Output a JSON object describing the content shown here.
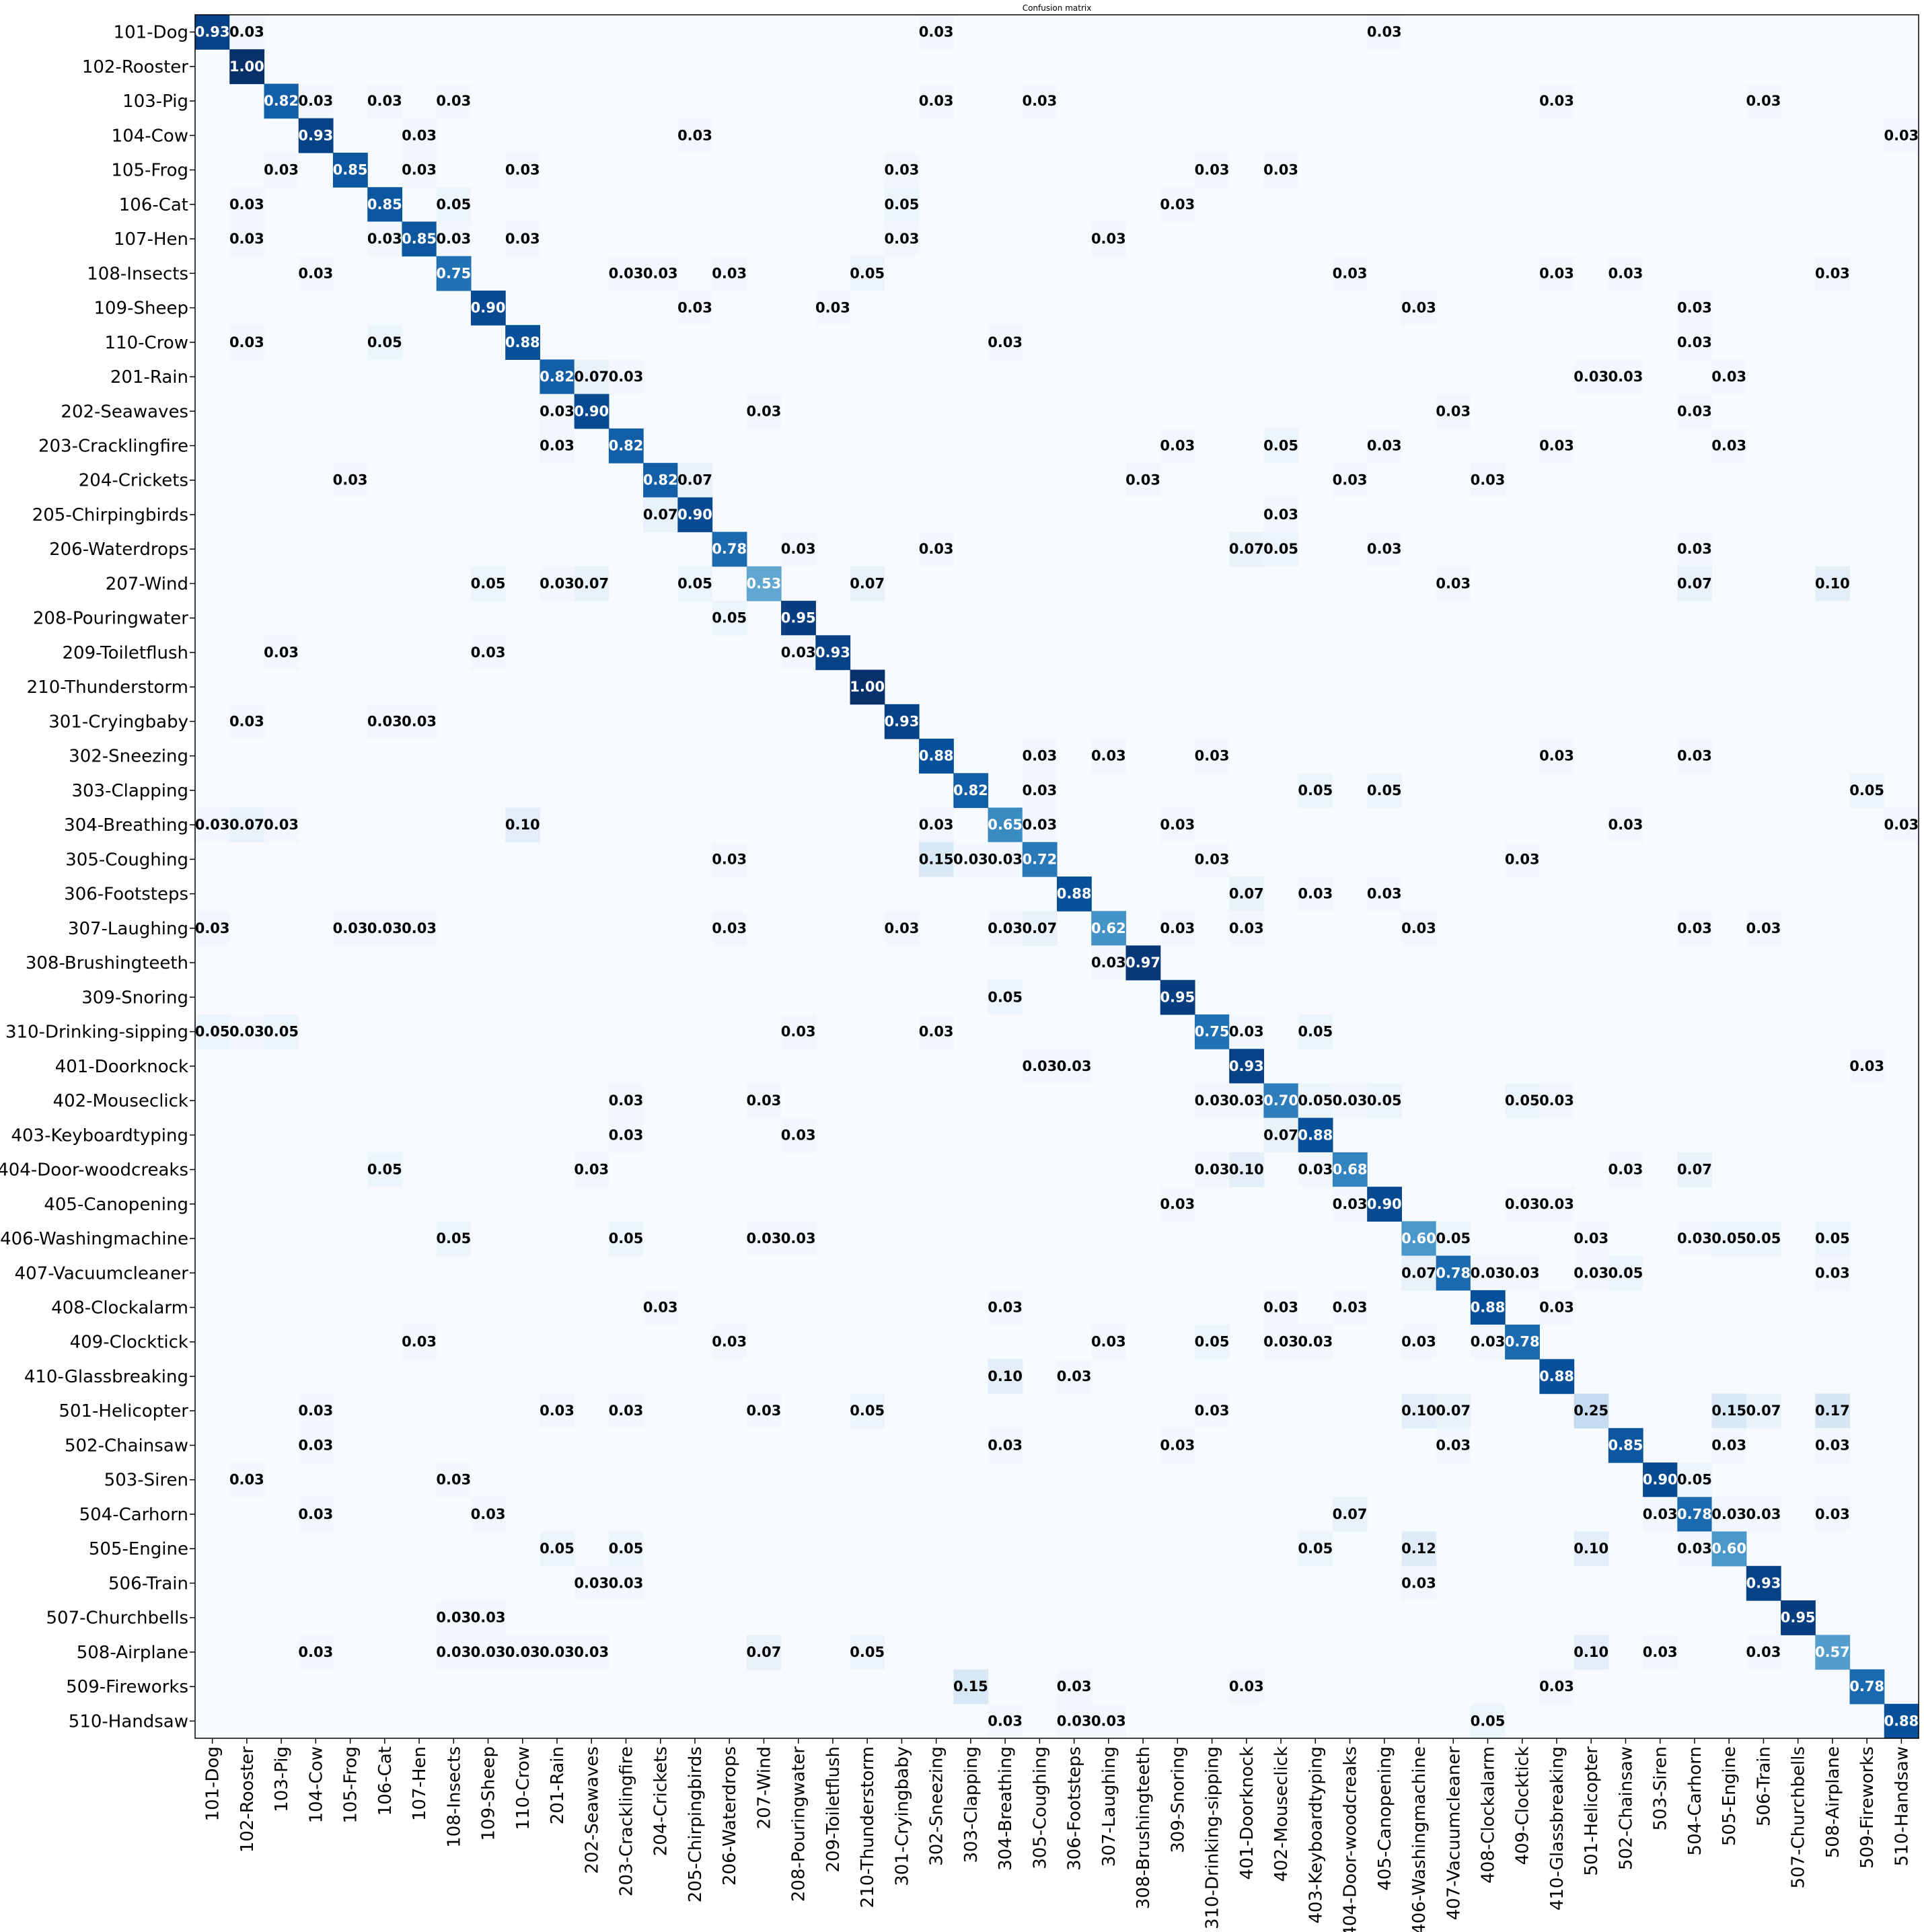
{
  "chart_data": {
    "type": "heatmap",
    "title": "Confusion matrix",
    "colormap": "Blues",
    "text_color_light": "#ffffff",
    "text_color_dark": "#000000",
    "labels": [
      "101-Dog",
      "102-Rooster",
      "103-Pig",
      "104-Cow",
      "105-Frog",
      "106-Cat",
      "107-Hen",
      "108-Insects",
      "109-Sheep",
      "110-Crow",
      "201-Rain",
      "202-Seawaves",
      "203-Cracklingfire",
      "204-Crickets",
      "205-Chirpingbirds",
      "206-Waterdrops",
      "207-Wind",
      "208-Pouringwater",
      "209-Toiletflush",
      "210-Thunderstorm",
      "301-Cryingbaby",
      "302-Sneezing",
      "303-Clapping",
      "304-Breathing",
      "305-Coughing",
      "306-Footsteps",
      "307-Laughing",
      "308-Brushingteeth",
      "309-Snoring",
      "310-Drinking-sipping",
      "401-Doorknock",
      "402-Mouseclick",
      "403-Keyboardtyping",
      "404-Door-woodcreaks",
      "405-Canopening",
      "406-Washingmachine",
      "407-Vacuumcleaner",
      "408-Clockalarm",
      "409-Clocktick",
      "410-Glassbreaking",
      "501-Helicopter",
      "502-Chainsaw",
      "503-Siren",
      "504-Carhorn",
      "505-Engine",
      "506-Train",
      "507-Churchbells",
      "508-Airplane",
      "509-Fireworks",
      "510-Handsaw"
    ],
    "cells": [
      [
        0,
        0,
        0.93
      ],
      [
        0,
        1,
        0.03
      ],
      [
        0,
        21,
        0.03
      ],
      [
        0,
        34,
        0.03
      ],
      [
        1,
        1,
        1.0
      ],
      [
        2,
        2,
        0.82
      ],
      [
        2,
        3,
        0.03
      ],
      [
        2,
        5,
        0.03
      ],
      [
        2,
        7,
        0.03
      ],
      [
        2,
        21,
        0.03
      ],
      [
        2,
        24,
        0.03
      ],
      [
        2,
        39,
        0.03
      ],
      [
        2,
        45,
        0.03
      ],
      [
        3,
        3,
        0.93
      ],
      [
        3,
        6,
        0.03
      ],
      [
        3,
        14,
        0.03
      ],
      [
        3,
        49,
        0.03
      ],
      [
        4,
        2,
        0.03
      ],
      [
        4,
        4,
        0.85
      ],
      [
        4,
        6,
        0.03
      ],
      [
        4,
        9,
        0.03
      ],
      [
        4,
        20,
        0.03
      ],
      [
        4,
        29,
        0.03
      ],
      [
        4,
        31,
        0.03
      ],
      [
        5,
        1,
        0.03
      ],
      [
        5,
        5,
        0.85
      ],
      [
        5,
        7,
        0.05
      ],
      [
        5,
        20,
        0.05
      ],
      [
        5,
        28,
        0.03
      ],
      [
        6,
        1,
        0.03
      ],
      [
        6,
        5,
        0.03
      ],
      [
        6,
        6,
        0.85
      ],
      [
        6,
        7,
        0.03
      ],
      [
        6,
        9,
        0.03
      ],
      [
        6,
        20,
        0.03
      ],
      [
        6,
        26,
        0.03
      ],
      [
        7,
        3,
        0.03
      ],
      [
        7,
        7,
        0.75
      ],
      [
        7,
        12,
        0.03
      ],
      [
        7,
        13,
        0.03
      ],
      [
        7,
        15,
        0.03
      ],
      [
        7,
        19,
        0.05
      ],
      [
        7,
        33,
        0.03
      ],
      [
        7,
        39,
        0.03
      ],
      [
        7,
        41,
        0.03
      ],
      [
        7,
        47,
        0.03
      ],
      [
        8,
        8,
        0.9
      ],
      [
        8,
        14,
        0.03
      ],
      [
        8,
        18,
        0.03
      ],
      [
        8,
        35,
        0.03
      ],
      [
        8,
        43,
        0.03
      ],
      [
        9,
        1,
        0.03
      ],
      [
        9,
        5,
        0.05
      ],
      [
        9,
        9,
        0.88
      ],
      [
        9,
        23,
        0.03
      ],
      [
        9,
        43,
        0.03
      ],
      [
        10,
        10,
        0.82
      ],
      [
        10,
        11,
        0.07
      ],
      [
        10,
        12,
        0.03
      ],
      [
        10,
        40,
        0.03
      ],
      [
        10,
        41,
        0.03
      ],
      [
        10,
        44,
        0.03
      ],
      [
        11,
        10,
        0.03
      ],
      [
        11,
        11,
        0.9
      ],
      [
        11,
        16,
        0.03
      ],
      [
        11,
        36,
        0.03
      ],
      [
        11,
        43,
        0.03
      ],
      [
        12,
        10,
        0.03
      ],
      [
        12,
        12,
        0.82
      ],
      [
        12,
        28,
        0.03
      ],
      [
        12,
        31,
        0.05
      ],
      [
        12,
        34,
        0.03
      ],
      [
        12,
        39,
        0.03
      ],
      [
        12,
        44,
        0.03
      ],
      [
        13,
        4,
        0.03
      ],
      [
        13,
        13,
        0.82
      ],
      [
        13,
        14,
        0.07
      ],
      [
        13,
        27,
        0.03
      ],
      [
        13,
        33,
        0.03
      ],
      [
        13,
        37,
        0.03
      ],
      [
        14,
        13,
        0.07
      ],
      [
        14,
        14,
        0.9
      ],
      [
        14,
        31,
        0.03
      ],
      [
        15,
        15,
        0.78
      ],
      [
        15,
        17,
        0.03
      ],
      [
        15,
        21,
        0.03
      ],
      [
        15,
        30,
        0.07
      ],
      [
        15,
        31,
        0.05
      ],
      [
        15,
        34,
        0.03
      ],
      [
        15,
        43,
        0.03
      ],
      [
        16,
        8,
        0.05
      ],
      [
        16,
        10,
        0.03
      ],
      [
        16,
        11,
        0.07
      ],
      [
        16,
        14,
        0.05
      ],
      [
        16,
        16,
        0.53
      ],
      [
        16,
        19,
        0.07
      ],
      [
        16,
        36,
        0.03
      ],
      [
        16,
        43,
        0.07
      ],
      [
        16,
        47,
        0.1
      ],
      [
        17,
        15,
        0.05
      ],
      [
        17,
        17,
        0.95
      ],
      [
        18,
        2,
        0.03
      ],
      [
        18,
        8,
        0.03
      ],
      [
        18,
        17,
        0.03
      ],
      [
        18,
        18,
        0.93
      ],
      [
        19,
        19,
        1.0
      ],
      [
        20,
        1,
        0.03
      ],
      [
        20,
        5,
        0.03
      ],
      [
        20,
        6,
        0.03
      ],
      [
        20,
        20,
        0.93
      ],
      [
        21,
        21,
        0.88
      ],
      [
        21,
        24,
        0.03
      ],
      [
        21,
        26,
        0.03
      ],
      [
        21,
        29,
        0.03
      ],
      [
        21,
        39,
        0.03
      ],
      [
        21,
        43,
        0.03
      ],
      [
        22,
        22,
        0.82
      ],
      [
        22,
        24,
        0.03
      ],
      [
        22,
        32,
        0.05
      ],
      [
        22,
        34,
        0.05
      ],
      [
        22,
        48,
        0.05
      ],
      [
        23,
        0,
        0.03
      ],
      [
        23,
        1,
        0.07
      ],
      [
        23,
        2,
        0.03
      ],
      [
        23,
        9,
        0.1
      ],
      [
        23,
        21,
        0.03
      ],
      [
        23,
        23,
        0.65
      ],
      [
        23,
        24,
        0.03
      ],
      [
        23,
        28,
        0.03
      ],
      [
        23,
        41,
        0.03
      ],
      [
        23,
        49,
        0.03
      ],
      [
        24,
        15,
        0.03
      ],
      [
        24,
        21,
        0.15
      ],
      [
        24,
        22,
        0.03
      ],
      [
        24,
        23,
        0.03
      ],
      [
        24,
        24,
        0.72
      ],
      [
        24,
        29,
        0.03
      ],
      [
        24,
        38,
        0.03
      ],
      [
        25,
        25,
        0.88
      ],
      [
        25,
        30,
        0.07
      ],
      [
        25,
        32,
        0.03
      ],
      [
        25,
        34,
        0.03
      ],
      [
        26,
        0,
        0.03
      ],
      [
        26,
        4,
        0.03
      ],
      [
        26,
        5,
        0.03
      ],
      [
        26,
        6,
        0.03
      ],
      [
        26,
        15,
        0.03
      ],
      [
        26,
        20,
        0.03
      ],
      [
        26,
        23,
        0.03
      ],
      [
        26,
        24,
        0.07
      ],
      [
        26,
        26,
        0.62
      ],
      [
        26,
        28,
        0.03
      ],
      [
        26,
        30,
        0.03
      ],
      [
        26,
        35,
        0.03
      ],
      [
        26,
        43,
        0.03
      ],
      [
        26,
        45,
        0.03
      ],
      [
        27,
        26,
        0.03
      ],
      [
        27,
        27,
        0.97
      ],
      [
        28,
        23,
        0.05
      ],
      [
        28,
        28,
        0.95
      ],
      [
        29,
        0,
        0.05
      ],
      [
        29,
        1,
        0.03
      ],
      [
        29,
        2,
        0.05
      ],
      [
        29,
        17,
        0.03
      ],
      [
        29,
        21,
        0.03
      ],
      [
        29,
        29,
        0.75
      ],
      [
        29,
        30,
        0.03
      ],
      [
        29,
        32,
        0.05
      ],
      [
        30,
        24,
        0.03
      ],
      [
        30,
        25,
        0.03
      ],
      [
        30,
        30,
        0.93
      ],
      [
        30,
        48,
        0.03
      ],
      [
        31,
        12,
        0.03
      ],
      [
        31,
        16,
        0.03
      ],
      [
        31,
        29,
        0.03
      ],
      [
        31,
        30,
        0.03
      ],
      [
        31,
        31,
        0.7
      ],
      [
        31,
        32,
        0.05
      ],
      [
        31,
        33,
        0.03
      ],
      [
        31,
        34,
        0.05
      ],
      [
        31,
        38,
        0.05
      ],
      [
        31,
        39,
        0.03
      ],
      [
        32,
        12,
        0.03
      ],
      [
        32,
        17,
        0.03
      ],
      [
        32,
        31,
        0.07
      ],
      [
        32,
        32,
        0.88
      ],
      [
        33,
        5,
        0.05
      ],
      [
        33,
        11,
        0.03
      ],
      [
        33,
        29,
        0.03
      ],
      [
        33,
        30,
        0.1
      ],
      [
        33,
        32,
        0.03
      ],
      [
        33,
        33,
        0.68
      ],
      [
        33,
        41,
        0.03
      ],
      [
        33,
        43,
        0.07
      ],
      [
        34,
        28,
        0.03
      ],
      [
        34,
        33,
        0.03
      ],
      [
        34,
        34,
        0.9
      ],
      [
        34,
        38,
        0.03
      ],
      [
        34,
        39,
        0.03
      ],
      [
        35,
        7,
        0.05
      ],
      [
        35,
        12,
        0.05
      ],
      [
        35,
        16,
        0.03
      ],
      [
        35,
        17,
        0.03
      ],
      [
        35,
        35,
        0.6
      ],
      [
        35,
        36,
        0.05
      ],
      [
        35,
        40,
        0.03
      ],
      [
        35,
        43,
        0.03
      ],
      [
        35,
        44,
        0.05
      ],
      [
        35,
        45,
        0.05
      ],
      [
        35,
        47,
        0.05
      ],
      [
        36,
        35,
        0.07
      ],
      [
        36,
        36,
        0.78
      ],
      [
        36,
        37,
        0.03
      ],
      [
        36,
        38,
        0.03
      ],
      [
        36,
        40,
        0.03
      ],
      [
        36,
        41,
        0.05
      ],
      [
        36,
        47,
        0.03
      ],
      [
        37,
        13,
        0.03
      ],
      [
        37,
        23,
        0.03
      ],
      [
        37,
        31,
        0.03
      ],
      [
        37,
        33,
        0.03
      ],
      [
        37,
        37,
        0.88
      ],
      [
        37,
        39,
        0.03
      ],
      [
        38,
        6,
        0.03
      ],
      [
        38,
        15,
        0.03
      ],
      [
        38,
        26,
        0.03
      ],
      [
        38,
        29,
        0.05
      ],
      [
        38,
        31,
        0.03
      ],
      [
        38,
        32,
        0.03
      ],
      [
        38,
        35,
        0.03
      ],
      [
        38,
        37,
        0.03
      ],
      [
        38,
        38,
        0.78
      ],
      [
        39,
        23,
        0.1
      ],
      [
        39,
        25,
        0.03
      ],
      [
        39,
        39,
        0.88
      ],
      [
        40,
        3,
        0.03
      ],
      [
        40,
        10,
        0.03
      ],
      [
        40,
        12,
        0.03
      ],
      [
        40,
        16,
        0.03
      ],
      [
        40,
        19,
        0.05
      ],
      [
        40,
        29,
        0.03
      ],
      [
        40,
        35,
        0.1
      ],
      [
        40,
        36,
        0.07
      ],
      [
        40,
        40,
        0.25
      ],
      [
        40,
        44,
        0.15
      ],
      [
        40,
        45,
        0.07
      ],
      [
        40,
        47,
        0.17
      ],
      [
        41,
        3,
        0.03
      ],
      [
        41,
        23,
        0.03
      ],
      [
        41,
        28,
        0.03
      ],
      [
        41,
        36,
        0.03
      ],
      [
        41,
        41,
        0.85
      ],
      [
        41,
        44,
        0.03
      ],
      [
        41,
        47,
        0.03
      ],
      [
        42,
        1,
        0.03
      ],
      [
        42,
        7,
        0.03
      ],
      [
        42,
        42,
        0.9
      ],
      [
        42,
        43,
        0.05
      ],
      [
        43,
        3,
        0.03
      ],
      [
        43,
        8,
        0.03
      ],
      [
        43,
        33,
        0.07
      ],
      [
        43,
        42,
        0.03
      ],
      [
        43,
        43,
        0.78
      ],
      [
        43,
        44,
        0.03
      ],
      [
        43,
        45,
        0.03
      ],
      [
        43,
        47,
        0.03
      ],
      [
        44,
        10,
        0.05
      ],
      [
        44,
        12,
        0.05
      ],
      [
        44,
        32,
        0.05
      ],
      [
        44,
        35,
        0.12
      ],
      [
        44,
        40,
        0.1
      ],
      [
        44,
        43,
        0.03
      ],
      [
        44,
        44,
        0.6
      ],
      [
        45,
        11,
        0.03
      ],
      [
        45,
        12,
        0.03
      ],
      [
        45,
        35,
        0.03
      ],
      [
        45,
        45,
        0.93
      ],
      [
        46,
        7,
        0.03
      ],
      [
        46,
        8,
        0.03
      ],
      [
        46,
        46,
        0.95
      ],
      [
        47,
        3,
        0.03
      ],
      [
        47,
        7,
        0.03
      ],
      [
        47,
        8,
        0.03
      ],
      [
        47,
        9,
        0.03
      ],
      [
        47,
        10,
        0.03
      ],
      [
        47,
        11,
        0.03
      ],
      [
        47,
        16,
        0.07
      ],
      [
        47,
        19,
        0.05
      ],
      [
        47,
        40,
        0.1
      ],
      [
        47,
        42,
        0.03
      ],
      [
        47,
        45,
        0.03
      ],
      [
        47,
        47,
        0.57
      ],
      [
        48,
        22,
        0.15
      ],
      [
        48,
        25,
        0.03
      ],
      [
        48,
        30,
        0.03
      ],
      [
        48,
        39,
        0.03
      ],
      [
        48,
        48,
        0.78
      ],
      [
        49,
        23,
        0.03
      ],
      [
        49,
        25,
        0.03
      ],
      [
        49,
        26,
        0.03
      ],
      [
        49,
        37,
        0.05
      ],
      [
        49,
        49,
        0.88
      ]
    ]
  }
}
